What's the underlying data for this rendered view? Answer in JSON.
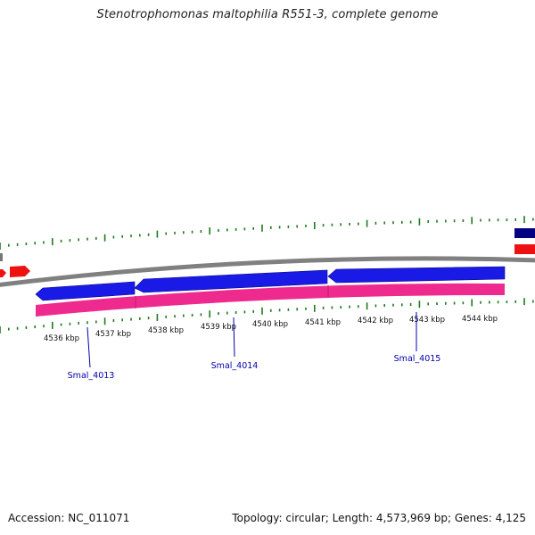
{
  "title": "Stenotrophomonas maltophilia R551-3, complete genome",
  "colors": {
    "backbone": "#808080",
    "gene_forward": "#ee1111",
    "gene_reverse": "#1a1ae6",
    "cds_track": "#ee2a8e",
    "tick": "#1f7a1f",
    "label_line": "#0000aa",
    "edge_feature": "#000080"
  },
  "scale": {
    "unit": "kbp",
    "ticks": [
      "4536 kbp",
      "4537 kbp",
      "4538 kbp",
      "4539 kbp",
      "4540 kbp",
      "4541 kbp",
      "4542 kbp",
      "4543 kbp",
      "4544 kbp"
    ]
  },
  "genes": [
    {
      "label": "Smal_4013",
      "strand": "reverse"
    },
    {
      "label": "Smal_4014",
      "strand": "reverse"
    },
    {
      "label": "Smal_4015",
      "strand": "reverse"
    }
  ],
  "footer": {
    "accession": "Accession: NC_011071",
    "summary": "Topology: circular; Length: 4,573,969 bp; Genes: 4,125"
  }
}
